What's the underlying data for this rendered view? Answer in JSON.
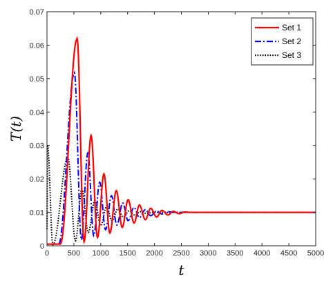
{
  "chart_data": {
    "type": "line",
    "xlabel": "t",
    "ylabel": "T(t)",
    "xlim": [
      0,
      5000
    ],
    "ylim": [
      0,
      0.07
    ],
    "xticks": [
      "0",
      "500",
      "1000",
      "1500",
      "2000",
      "2500",
      "3000",
      "3500",
      "4000",
      "4500",
      "5000"
    ],
    "yticks": [
      "0",
      "0.01",
      "0.02",
      "0.03",
      "0.04",
      "0.05",
      "0.06",
      "0.07"
    ],
    "grid": false,
    "legend_position": "top-right",
    "series": [
      {
        "name": "Set 1",
        "color": "#ff0000",
        "style": "solid",
        "peaks": [
          [
            560,
            0.062
          ],
          [
            820,
            0.033
          ],
          [
            1060,
            0.0215
          ],
          [
            1290,
            0.0165
          ],
          [
            1510,
            0.0138
          ],
          [
            1720,
            0.0122
          ],
          [
            1930,
            0.0112
          ],
          [
            2140,
            0.0106
          ],
          [
            2350,
            0.0103
          ],
          [
            2560,
            0.0101
          ]
        ],
        "troughs": [
          [
            250,
            0.0005
          ],
          [
            690,
            0.0012
          ],
          [
            940,
            0.0025
          ],
          [
            1170,
            0.0038
          ],
          [
            1400,
            0.0055
          ],
          [
            1620,
            0.0068
          ],
          [
            1830,
            0.0078
          ],
          [
            2040,
            0.0086
          ],
          [
            2250,
            0.0092
          ],
          [
            2460,
            0.0096
          ]
        ],
        "start": [
          0,
          0.0005
        ],
        "steady": 0.01
      },
      {
        "name": "Set 2",
        "color": "#0000ff",
        "style": "dashdot",
        "peaks": [
          [
            510,
            0.0518
          ],
          [
            760,
            0.0278
          ],
          [
            980,
            0.019
          ],
          [
            1200,
            0.015
          ],
          [
            1410,
            0.0128
          ],
          [
            1620,
            0.0115
          ],
          [
            1830,
            0.0108
          ],
          [
            2040,
            0.0104
          ],
          [
            2250,
            0.0102
          ]
        ],
        "troughs": [
          [
            220,
            0.0005
          ],
          [
            640,
            0.0018
          ],
          [
            870,
            0.003
          ],
          [
            1090,
            0.0048
          ],
          [
            1300,
            0.0062
          ],
          [
            1510,
            0.0075
          ],
          [
            1720,
            0.0084
          ],
          [
            1930,
            0.009
          ],
          [
            2140,
            0.0095
          ]
        ],
        "start": [
          0,
          0.0005
        ],
        "steady": 0.01
      },
      {
        "name": "Set 3",
        "color": "#000000",
        "style": "dotted",
        "peaks": [
          [
            10,
            0.0302
          ],
          [
            390,
            0.0265
          ],
          [
            650,
            0.017
          ],
          [
            890,
            0.0135
          ],
          [
            1110,
            0.0118
          ],
          [
            1320,
            0.011
          ],
          [
            1530,
            0.0105
          ],
          [
            1740,
            0.0102
          ]
        ],
        "troughs": [
          [
            110,
            0.0003
          ],
          [
            530,
            0.0015
          ],
          [
            770,
            0.004
          ],
          [
            1000,
            0.006
          ],
          [
            1210,
            0.0075
          ],
          [
            1420,
            0.0085
          ],
          [
            1630,
            0.0092
          ],
          [
            1850,
            0.0097
          ]
        ],
        "start": [
          0,
          0.005
        ],
        "steady": 0.01
      }
    ]
  }
}
